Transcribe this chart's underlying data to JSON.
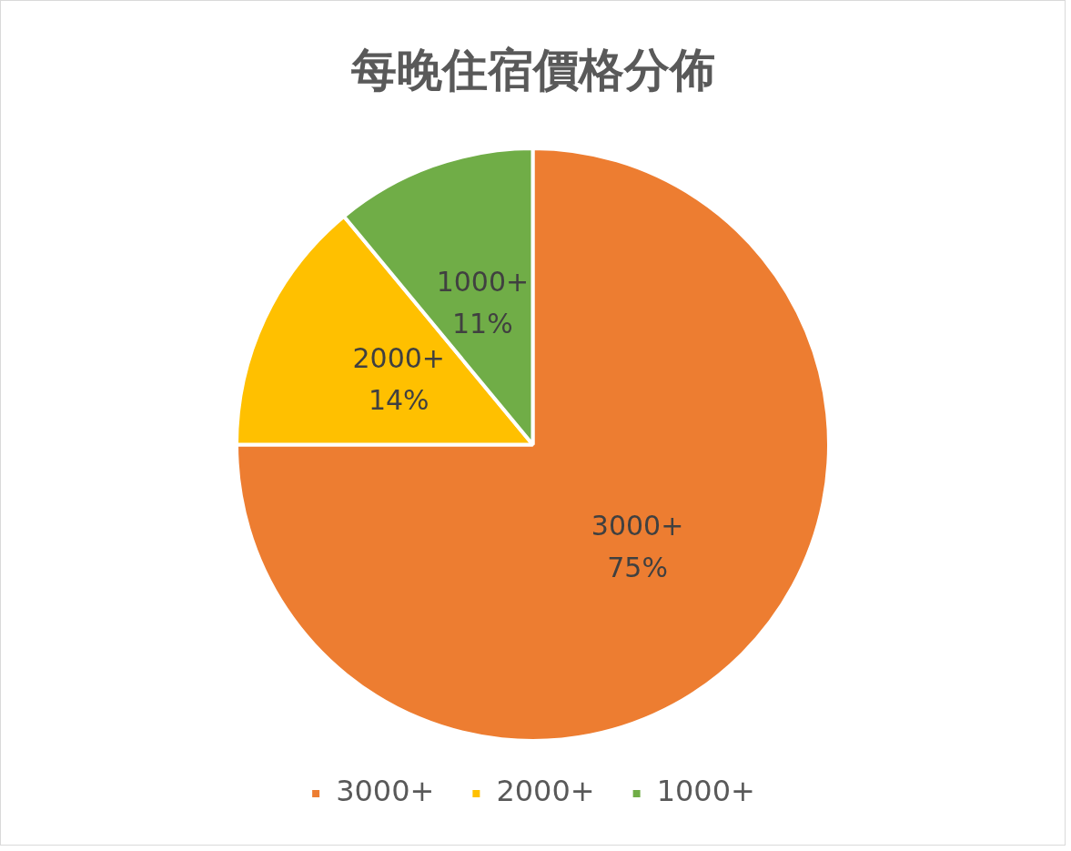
{
  "chart_data": {
    "type": "pie",
    "title": "每晚住宿價格分佈",
    "categories": [
      "3000+",
      "2000+",
      "1000+"
    ],
    "values": [
      75,
      14,
      11
    ],
    "value_labels": [
      "75%",
      "14%",
      "11%"
    ],
    "colors": [
      "#ed7d31",
      "#ffc000",
      "#70ad47"
    ],
    "legend": "bottom"
  }
}
